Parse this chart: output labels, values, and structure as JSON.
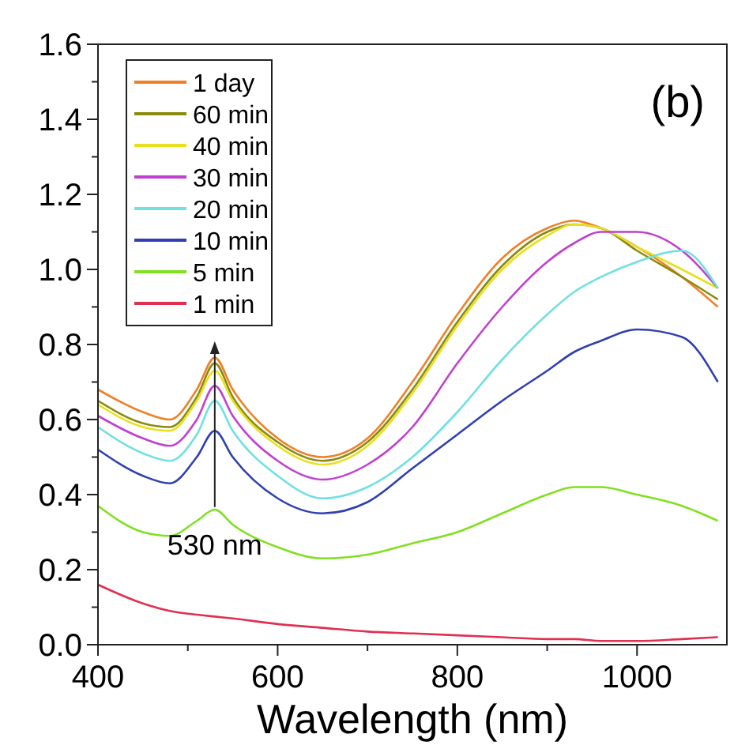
{
  "chart_data": {
    "type": "line",
    "title": "(b)",
    "xlabel": "Wavelength (nm)",
    "xlim": [
      400,
      1100
    ],
    "xticks": [
      400,
      {
        "value": 500,
        "label": null
      },
      600,
      {
        "value": 700,
        "label": null
      },
      800,
      {
        "value": 900,
        "label": null
      },
      1000
    ],
    "ylim": [
      0,
      1.6
    ],
    "yticks": [
      {
        "value": 0,
        "label": "0.0"
      },
      {
        "value": 0.1,
        "label": null
      },
      0.2,
      {
        "value": 0.3,
        "label": null
      },
      0.4,
      {
        "value": 0.5,
        "label": null
      },
      0.6,
      {
        "value": 0.7,
        "label": null
      },
      0.8,
      {
        "value": 0.9,
        "label": null
      },
      {
        "value": 1,
        "label": "1.0"
      },
      {
        "value": 1.1,
        "label": null
      },
      1.2,
      {
        "value": 1.3,
        "label": null
      },
      1.4,
      {
        "value": 1.5,
        "label": null
      },
      1.6
    ],
    "grid": false,
    "legend": "top left",
    "marker": "none",
    "line_style": "solid",
    "x": [
      400,
      450,
      480,
      510,
      530,
      550,
      600,
      650,
      700,
      750,
      800,
      850,
      900,
      930,
      960,
      1000,
      1050,
      1090
    ],
    "series": [
      {
        "name": "1 day",
        "color": "#f08028",
        "values": [
          0.68,
          0.62,
          0.6,
          0.68,
          0.765,
          0.68,
          0.55,
          0.5,
          0.55,
          0.7,
          0.88,
          1.03,
          1.11,
          1.13,
          1.11,
          1.06,
          0.98,
          0.9
        ]
      },
      {
        "name": "60 min",
        "color": "#8a8a10",
        "values": [
          0.65,
          0.59,
          0.58,
          0.66,
          0.75,
          0.66,
          0.54,
          0.49,
          0.54,
          0.68,
          0.86,
          1.01,
          1.1,
          1.12,
          1.11,
          1.05,
          0.98,
          0.92
        ]
      },
      {
        "name": "40 min",
        "color": "#e8e020",
        "values": [
          0.64,
          0.58,
          0.57,
          0.65,
          0.73,
          0.65,
          0.53,
          0.48,
          0.53,
          0.67,
          0.85,
          1.0,
          1.09,
          1.12,
          1.11,
          1.06,
          1.0,
          0.95
        ]
      },
      {
        "name": "30 min",
        "color": "#c040d0",
        "values": [
          0.61,
          0.55,
          0.53,
          0.6,
          0.69,
          0.61,
          0.49,
          0.44,
          0.48,
          0.58,
          0.75,
          0.9,
          1.02,
          1.07,
          1.1,
          1.1,
          1.05,
          0.95
        ]
      },
      {
        "name": "20 min",
        "color": "#70e0e0",
        "values": [
          0.58,
          0.51,
          0.49,
          0.56,
          0.65,
          0.57,
          0.45,
          0.39,
          0.42,
          0.5,
          0.62,
          0.76,
          0.88,
          0.94,
          0.98,
          1.02,
          1.05,
          0.95
        ]
      },
      {
        "name": "10 min",
        "color": "#3040b0",
        "values": [
          0.52,
          0.45,
          0.43,
          0.5,
          0.57,
          0.5,
          0.39,
          0.35,
          0.38,
          0.47,
          0.56,
          0.65,
          0.73,
          0.78,
          0.81,
          0.84,
          0.82,
          0.7
        ]
      },
      {
        "name": "5 min",
        "color": "#80e020",
        "values": [
          0.37,
          0.3,
          0.29,
          0.33,
          0.36,
          0.32,
          0.26,
          0.23,
          0.24,
          0.27,
          0.3,
          0.35,
          0.4,
          0.42,
          0.42,
          0.4,
          0.37,
          0.33
        ]
      },
      {
        "name": "1 min",
        "color": "#e03050",
        "values": [
          0.16,
          0.11,
          0.09,
          0.08,
          0.075,
          0.07,
          0.055,
          0.045,
          0.035,
          0.03,
          0.025,
          0.02,
          0.015,
          0.015,
          0.01,
          0.01,
          0.015,
          0.02
        ]
      }
    ],
    "annotations": [
      {
        "text": "530 nm",
        "x": 530,
        "y": 0.35
      }
    ]
  }
}
